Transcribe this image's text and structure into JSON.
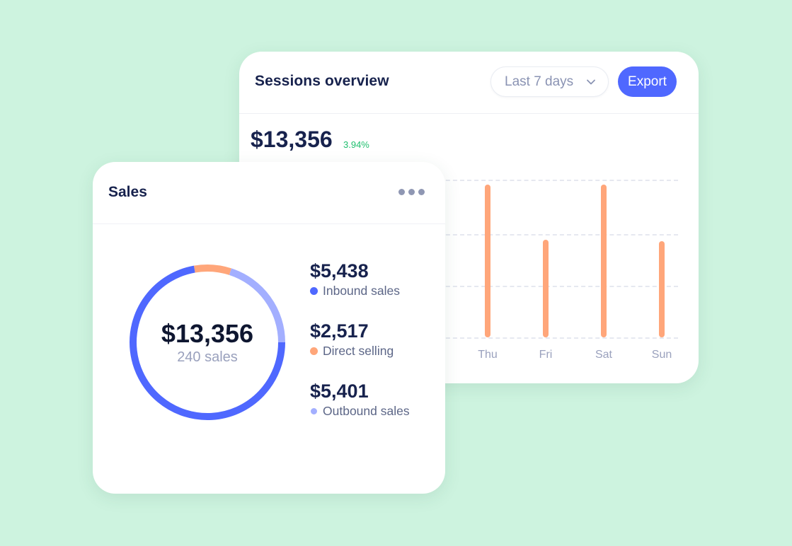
{
  "colors": {
    "background": "#cdf3df",
    "primary": "#4f68ff",
    "orange": "#ffa67a",
    "light_blue": "#a3afff",
    "positive": "#1fbf6e",
    "title": "#17224d"
  },
  "sessions": {
    "title": "Sessions overview",
    "range_select": {
      "value": "Last 7 days",
      "icon": "chevron-down-icon"
    },
    "export_label": "Export",
    "total": "$13,356",
    "delta": "3.94%"
  },
  "sales": {
    "title": "Sales",
    "menu_icon": "more-horizontal-icon",
    "total": "$13,356",
    "count_label": "240 sales",
    "legend": [
      {
        "value": "$5,438",
        "label": "Inbound sales",
        "color": "#4f68ff"
      },
      {
        "value": "$2,517",
        "label": "Direct selling",
        "color": "#ffa67a"
      },
      {
        "value": "$5,401",
        "label": "Outbound sales",
        "color": "#a3afff"
      }
    ]
  },
  "chart_data": [
    {
      "type": "bar",
      "title": "Sessions overview",
      "categories": [
        "Thu",
        "Fri",
        "Sat",
        "Sun"
      ],
      "values": [
        97,
        62,
        97,
        61
      ],
      "note": "Visible bars only; earlier days hidden behind Sales card. Values relative (% of top gridline-scaled range).",
      "xlabel": "",
      "ylabel": "",
      "ylim": [
        0,
        100
      ],
      "grid": true,
      "color": "#ffa67a"
    },
    {
      "type": "pie",
      "title": "Sales",
      "categories": [
        "Inbound sales",
        "Direct selling",
        "Outbound sales"
      ],
      "values": [
        5438,
        2517,
        5401
      ],
      "center_label": "$13,356",
      "center_sublabel": "240 sales",
      "colors": [
        "#4f68ff",
        "#ffa67a",
        "#a3afff"
      ]
    }
  ]
}
